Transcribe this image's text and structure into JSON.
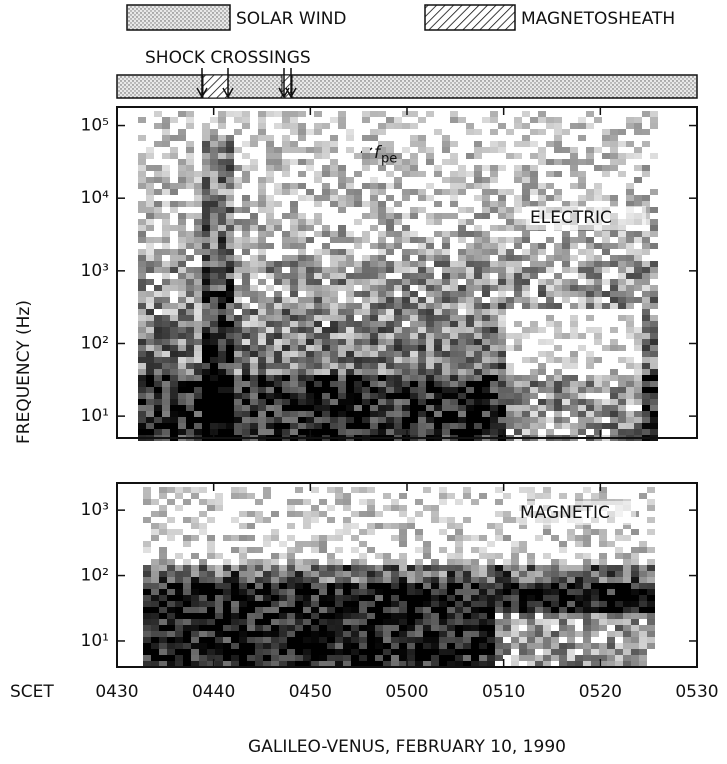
{
  "legend": [
    {
      "label": "SOLAR WIND",
      "pattern": "dots"
    },
    {
      "label": "MAGNETOSHEATH",
      "pattern": "hatch"
    }
  ],
  "shock_label": "SHOCK CROSSINGS",
  "y_label": "FREQUENCY (Hz)",
  "x_axis": {
    "label": "SCET",
    "ticks": [
      "0430",
      "0440",
      "0450",
      "0500",
      "0510",
      "0520",
      "0530"
    ]
  },
  "caption": "GALILEO-VENUS, FEBRUARY 10, 1990",
  "chart_data": [
    {
      "type": "spectrogram",
      "label": "ELECTRIC",
      "log": true,
      "ylim": [
        5,
        180000
      ],
      "yticks": [
        {
          "value": 10,
          "label": "10¹"
        },
        {
          "value": 100,
          "label": "10²"
        },
        {
          "value": 1000,
          "label": "10³"
        },
        {
          "value": 10000,
          "label": "10⁴"
        },
        {
          "value": 100000,
          "label": "10⁵"
        }
      ],
      "annotation": {
        "symbol": "f",
        "subscript": "pe"
      }
    },
    {
      "type": "spectrogram",
      "label": "MAGNETIC",
      "log": true,
      "ylim": [
        4,
        2600
      ],
      "yticks": [
        {
          "value": 10,
          "label": "10¹"
        },
        {
          "value": 100,
          "label": "10²"
        },
        {
          "value": 1000,
          "label": "10³"
        }
      ]
    }
  ]
}
